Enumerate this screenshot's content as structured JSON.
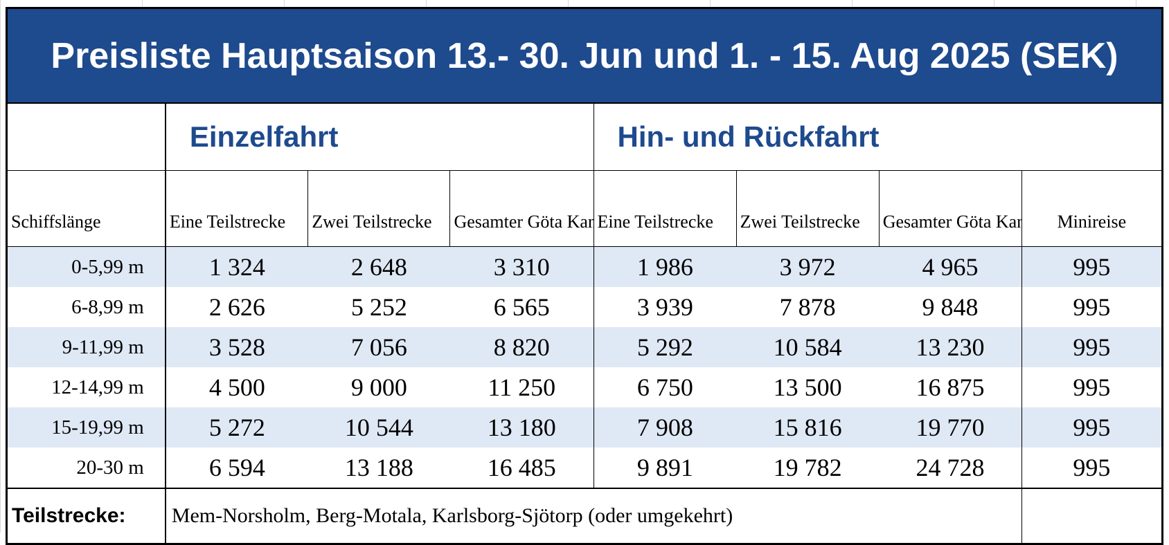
{
  "title": "Preisliste Hauptsaison 13.- 30. Jun und 1. - 15. Aug 2025 (SEK)",
  "groups": {
    "single": "Einzelfahrt",
    "return": "Hin- und Rückfahrt"
  },
  "headers": {
    "length": "Schiffslänge",
    "single_one": "Eine Teilstrecke",
    "single_two": "Zwei Teilstrecke",
    "single_full": "Gesamter Göta Kanal",
    "return_one": "Eine Teilstrecke",
    "return_two": "Zwei Teilstrecke",
    "return_full": "Gesamter Göta Kanal",
    "mini": "Minireise"
  },
  "rows": [
    {
      "length": "0-5,99 m",
      "s1": "1 324",
      "s2": "2 648",
      "sf": "3 310",
      "r1": "1 986",
      "r2": "3 972",
      "rf": "4 965",
      "mini": "995"
    },
    {
      "length": "6-8,99 m",
      "s1": "2 626",
      "s2": "5 252",
      "sf": "6 565",
      "r1": "3 939",
      "r2": "7 878",
      "rf": "9 848",
      "mini": "995"
    },
    {
      "length": "9-11,99 m",
      "s1": "3 528",
      "s2": "7 056",
      "sf": "8 820",
      "r1": "5 292",
      "r2": "10 584",
      "rf": "13 230",
      "mini": "995"
    },
    {
      "length": "12-14,99 m",
      "s1": "4 500",
      "s2": "9 000",
      "sf": "11 250",
      "r1": "6 750",
      "r2": "13 500",
      "rf": "16 875",
      "mini": "995"
    },
    {
      "length": "15-19,99 m",
      "s1": "5 272",
      "s2": "10 544",
      "sf": "13 180",
      "r1": "7 908",
      "r2": "15 816",
      "rf": "19 770",
      "mini": "995"
    },
    {
      "length": "20-30 m",
      "s1": "6 594",
      "s2": "13 188",
      "sf": "16 485",
      "r1": "9 891",
      "r2": "19 782",
      "rf": "24 728",
      "mini": "995"
    }
  ],
  "footer": {
    "label": "Teilstrecke:",
    "text": "Mem-Norsholm, Berg-Motala, Karlsborg-Sjötorp (oder umgekehrt)"
  },
  "colors": {
    "title_bg": "#1e4a8e",
    "group_text": "#1e4a8e",
    "row_shade": "#dfe8f5"
  }
}
